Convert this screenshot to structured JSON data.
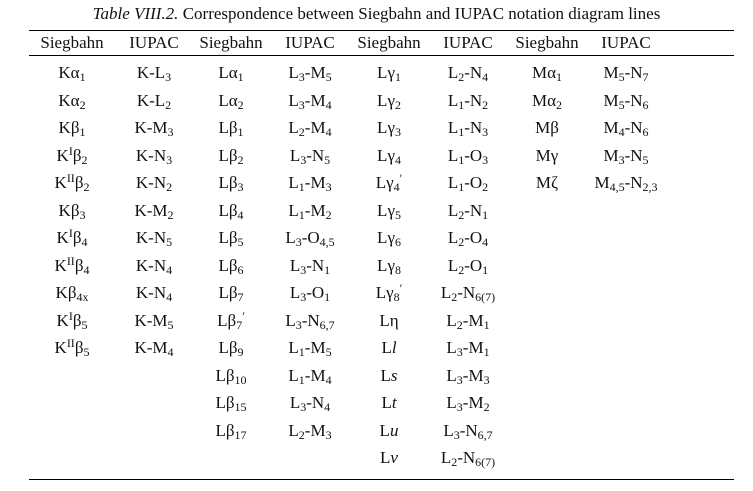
{
  "caption": {
    "lead": "Table VIII.2.",
    "text": " Correspondence between Siegbahn and IUPAC notation diagram lines"
  },
  "headers": [
    "Siegbahn",
    "IUPAC",
    "Siegbahn",
    "IUPAC",
    "Siegbahn",
    "IUPAC",
    "Siegbahn",
    "IUPAC"
  ],
  "groups": [
    {
      "siegbahn": [
        "Kα1",
        "Kα2",
        "Kβ1",
        "KIβ2",
        "KIIβ2",
        "Kβ3",
        "KIβ4",
        "KIIβ4",
        "Kβ4x",
        "KIβ5",
        "KIIβ5"
      ],
      "iupac": [
        "K-L3",
        "K-L2",
        "K-M3",
        "K-N3",
        "K-N2",
        "K-M2",
        "K-N5",
        "K-N4",
        "K-N4",
        "K-M5",
        "K-M4"
      ]
    },
    {
      "siegbahn": [
        "Lα1",
        "Lα2",
        "Lβ1",
        "Lβ2",
        "Lβ3",
        "Lβ4",
        "Lβ5",
        "Lβ6",
        "Lβ7",
        "Lβ7'",
        "Lβ9",
        "Lβ10",
        "Lβ15",
        "Lβ17"
      ],
      "iupac": [
        "L3-M5",
        "L3-M4",
        "L2-M4",
        "L3-N5",
        "L1-M3",
        "L1-M2",
        "L3-O4,5",
        "L3-N1",
        "L3-O1",
        "L3-N6,7",
        "L1-M5",
        "L1-M4",
        "L3-N4",
        "L2-M3"
      ]
    },
    {
      "siegbahn": [
        "Lγ1",
        "Lγ2",
        "Lγ3",
        "Lγ4",
        "Lγ4'",
        "Lγ5",
        "Lγ6",
        "Lγ8",
        "Lγ8'",
        "Lη",
        "Ll",
        "Ls",
        "Lt",
        "Lu",
        "Lv"
      ],
      "iupac": [
        "L2-N4",
        "L1-N2",
        "L1-N3",
        "L1-O3",
        "L1-O2",
        "L2-N1",
        "L2-O4",
        "L2-O1",
        "L2-N6(7)",
        "L2-M1",
        "L3-M1",
        "L3-M3",
        "L3-M2",
        "L3-N6,7",
        "L2-N6(7)"
      ]
    },
    {
      "siegbahn": [
        "Mα1",
        "Mα2",
        "Mβ",
        "Mγ",
        "Mζ"
      ],
      "iupac": [
        "M5-N7",
        "M5-N6",
        "M4-N6",
        "M3-N5",
        "M4,5-N2,3"
      ]
    }
  ]
}
